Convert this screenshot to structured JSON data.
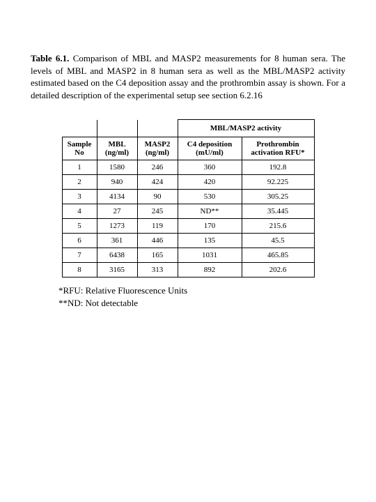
{
  "caption": {
    "label": "Table 6.1.",
    "text": "Comparison of MBL and MASP2 measurements for 8 human sera. The levels of MBL and MASP2 in 8 human sera as well as the MBL/MASP2 activity estimated based on the C4 deposition assay and the prothrombin assay is shown. For a detailed description of the experimental setup see section 6.2.16"
  },
  "table": {
    "spanner": "MBL/MASP2 activity",
    "columns": {
      "sample": {
        "line1": "Sample",
        "line2": "No"
      },
      "mbl": {
        "line1": "MBL",
        "line2": "(ng/ml)"
      },
      "masp": {
        "line1": "MASP2",
        "line2": "(ng/ml)"
      },
      "c4": {
        "line1": "C4 deposition",
        "line2": "(mU/ml)"
      },
      "prot": {
        "line1": "Prothrombin",
        "line2": "activation RFU*"
      }
    },
    "rows": [
      {
        "sample": "1",
        "mbl": "1580",
        "masp": "246",
        "c4": "360",
        "prot": "192.8"
      },
      {
        "sample": "2",
        "mbl": "940",
        "masp": "424",
        "c4": "420",
        "prot": "92.225"
      },
      {
        "sample": "3",
        "mbl": "4134",
        "masp": "90",
        "c4": "530",
        "prot": "305.25"
      },
      {
        "sample": "4",
        "mbl": "27",
        "masp": "245",
        "c4": "ND**",
        "prot": "35.445"
      },
      {
        "sample": "5",
        "mbl": "1273",
        "masp": "119",
        "c4": "170",
        "prot": "215.6"
      },
      {
        "sample": "6",
        "mbl": "361",
        "masp": "446",
        "c4": "135",
        "prot": "45.5"
      },
      {
        "sample": "7",
        "mbl": "6438",
        "masp": "165",
        "c4": "1031",
        "prot": "465.85"
      },
      {
        "sample": "8",
        "mbl": "3165",
        "masp": "313",
        "c4": "892",
        "prot": "202.6"
      }
    ]
  },
  "footnotes": {
    "rfu": "*RFU: Relative Fluorescence Units",
    "nd": "**ND: Not detectable"
  }
}
